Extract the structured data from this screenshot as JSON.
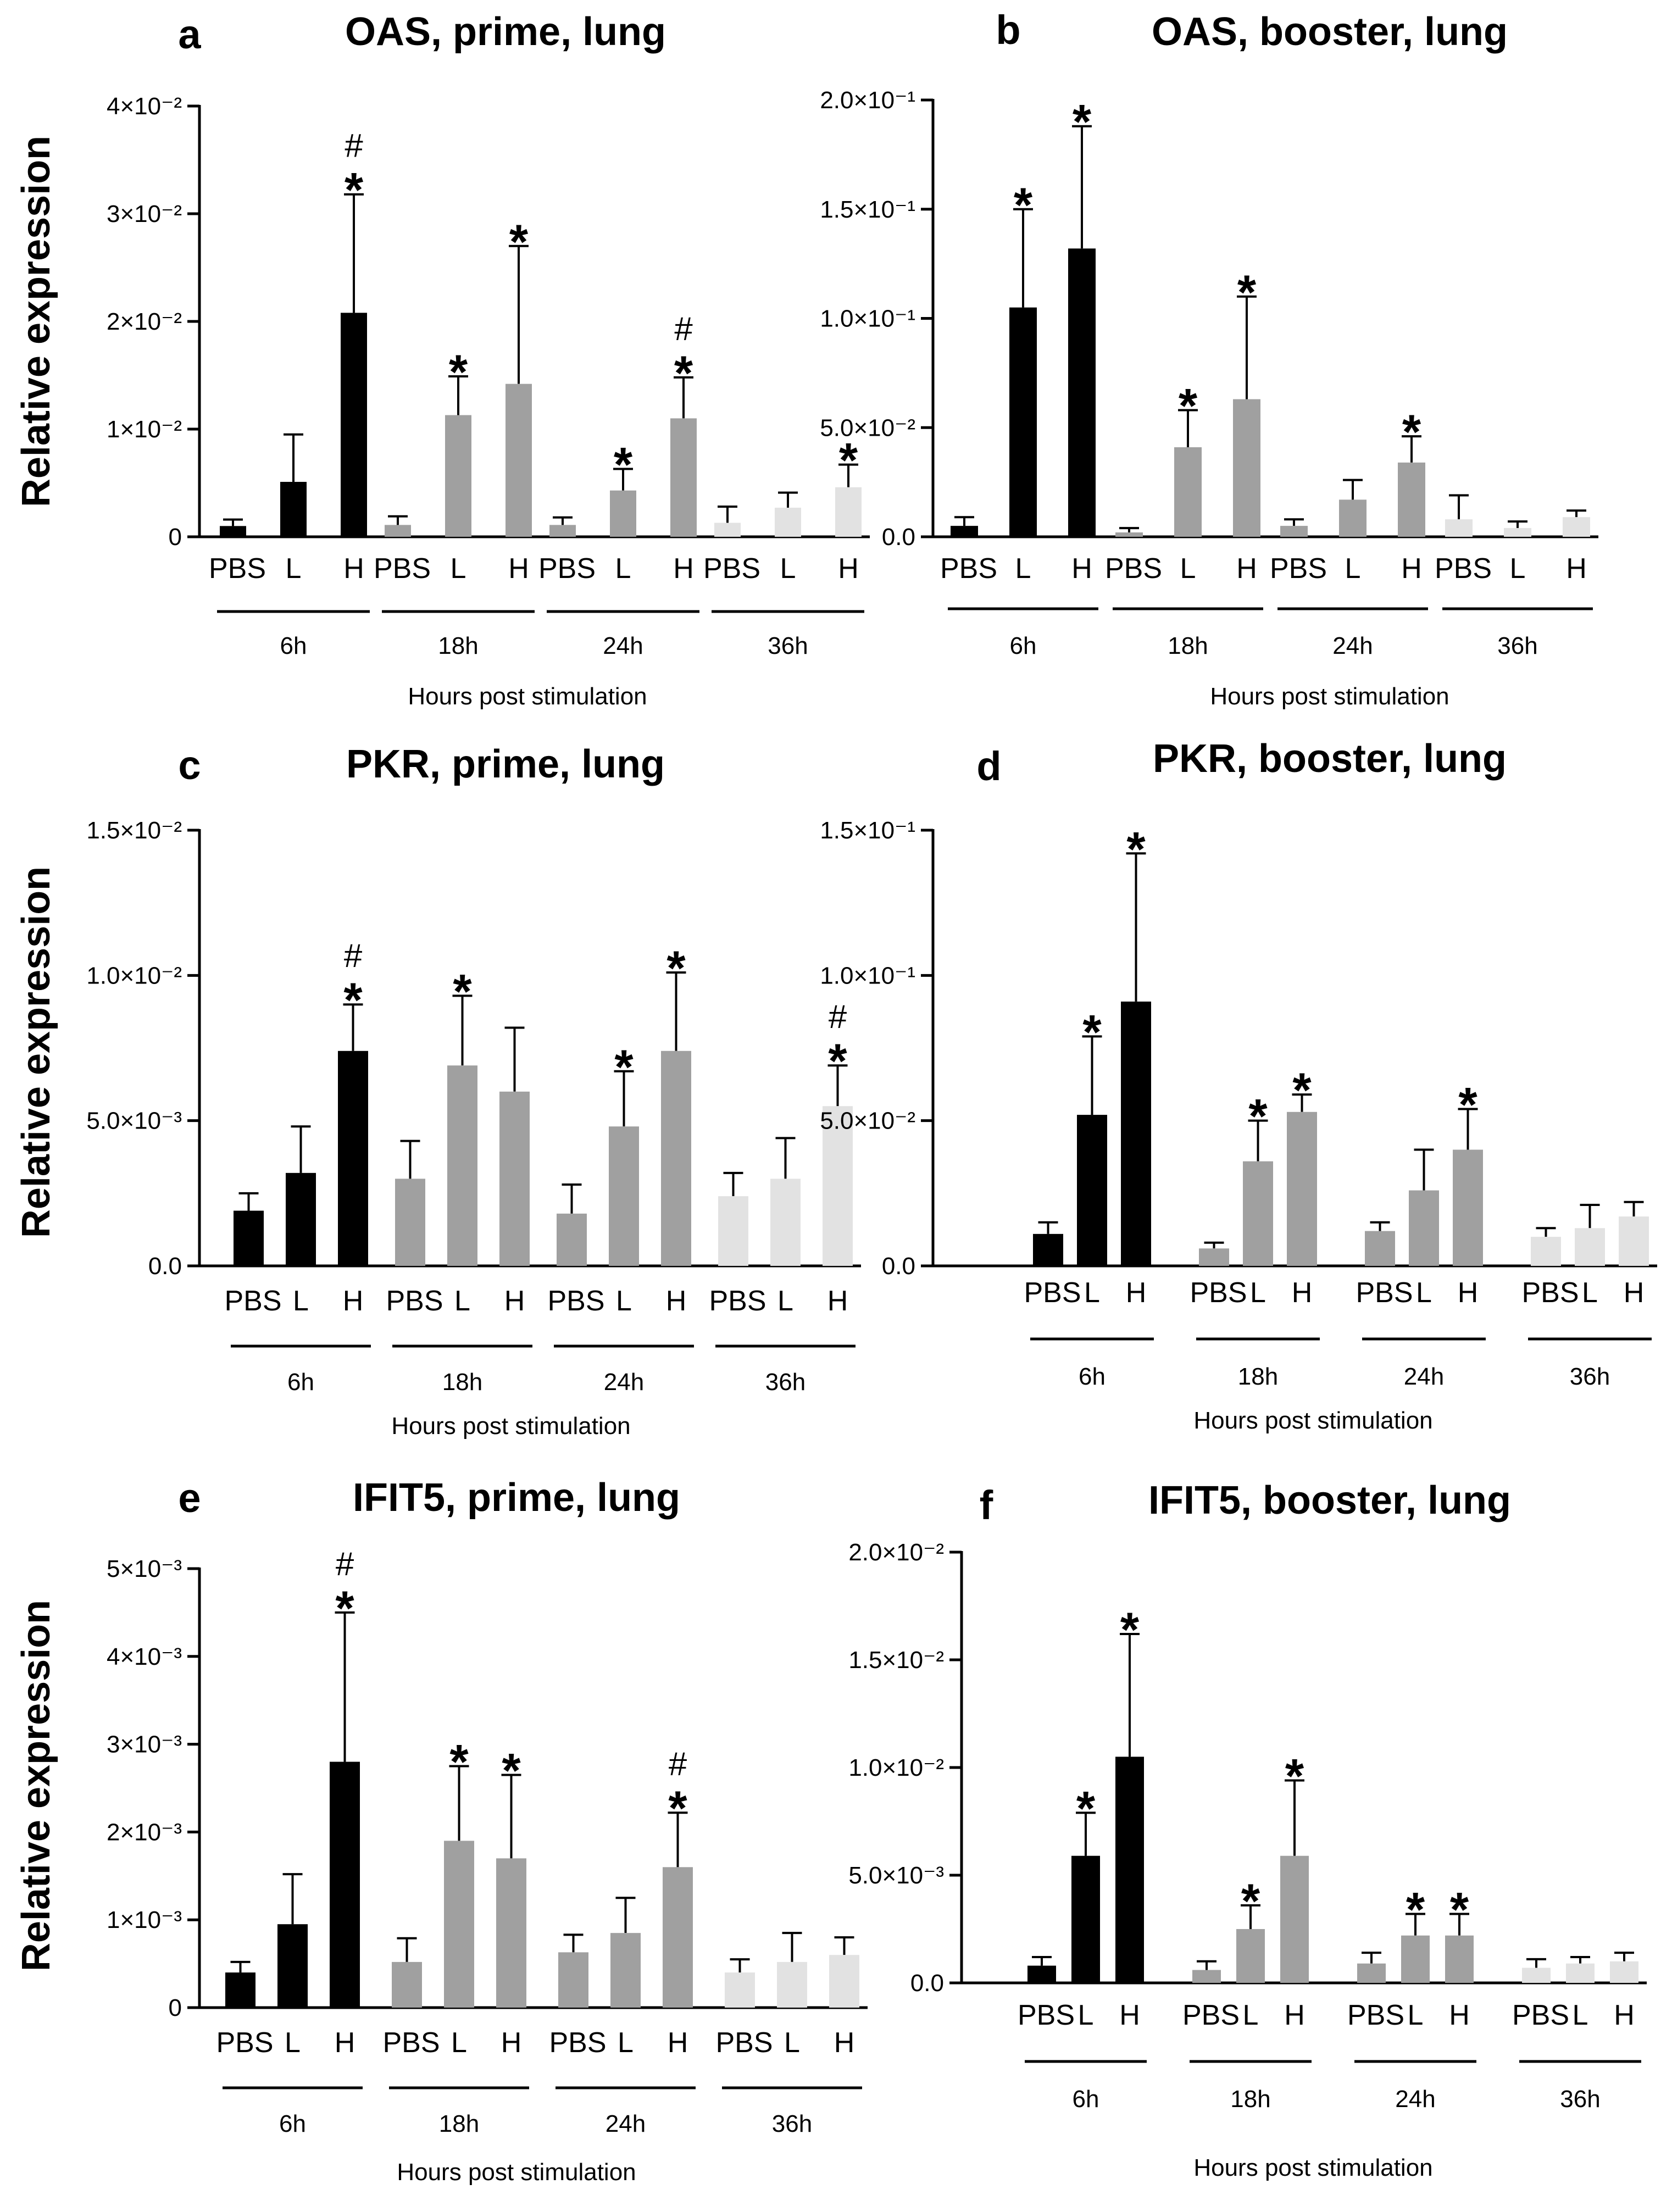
{
  "y_axis_label": "Relative expression",
  "colors": {
    "6h": "#000000",
    "18h": "#a0a0a0",
    "24h": "#a0a0a0",
    "36h": "#e2e2e2"
  },
  "chart_data": [
    {
      "letter": "a",
      "title": "OAS, prime, lung",
      "type": "bar",
      "xlabel": "Hours post stimulation",
      "groups": [
        "6h",
        "18h",
        "24h",
        "36h"
      ],
      "categories": [
        "PBS",
        "L",
        "H"
      ],
      "ylim": [
        0,
        0.04
      ],
      "ticks": [
        {
          "v": 0,
          "label": "0"
        },
        {
          "v": 0.01,
          "label": "1×10⁻²"
        },
        {
          "v": 0.02,
          "label": "2×10⁻²"
        },
        {
          "v": 0.03,
          "label": "3×10⁻²"
        },
        {
          "v": 0.04,
          "label": "4×10⁻²"
        }
      ],
      "values": [
        [
          0.001,
          0.0051,
          0.0208
        ],
        [
          0.0011,
          0.0113,
          0.0142
        ],
        [
          0.0011,
          0.0043,
          0.011
        ],
        [
          0.0013,
          0.0027,
          0.0046
        ]
      ],
      "errors": [
        [
          0.0006,
          0.0044,
          0.011
        ],
        [
          0.0008,
          0.0036,
          0.0128
        ],
        [
          0.0007,
          0.002,
          0.0038
        ],
        [
          0.0015,
          0.0014,
          0.0021
        ]
      ],
      "stars": [
        [
          false,
          false,
          true
        ],
        [
          false,
          true,
          true
        ],
        [
          false,
          true,
          true
        ],
        [
          false,
          false,
          true
        ]
      ],
      "hashes": [
        [
          false,
          false,
          true
        ],
        [
          false,
          false,
          false
        ],
        [
          false,
          false,
          true
        ],
        [
          false,
          false,
          false
        ]
      ]
    },
    {
      "letter": "b",
      "title": "OAS, booster, lung",
      "type": "bar",
      "xlabel": "Hours post stimulation",
      "groups": [
        "6h",
        "18h",
        "24h",
        "36h"
      ],
      "categories": [
        "PBS",
        "L",
        "H"
      ],
      "ylim": [
        0,
        0.2
      ],
      "ticks": [
        {
          "v": 0,
          "label": "0.0"
        },
        {
          "v": 0.05,
          "label": "5.0×10⁻²"
        },
        {
          "v": 0.1,
          "label": "1.0×10⁻¹"
        },
        {
          "v": 0.15,
          "label": "1.5×10⁻¹"
        },
        {
          "v": 0.2,
          "label": "2.0×10⁻¹"
        }
      ],
      "values": [
        [
          0.005,
          0.105,
          0.132
        ],
        [
          0.002,
          0.041,
          0.063
        ],
        [
          0.005,
          0.017,
          0.034
        ],
        [
          0.008,
          0.004,
          0.009
        ]
      ],
      "errors": [
        [
          0.004,
          0.045,
          0.056
        ],
        [
          0.002,
          0.017,
          0.047
        ],
        [
          0.003,
          0.009,
          0.012
        ],
        [
          0.011,
          0.003,
          0.003
        ]
      ],
      "stars": [
        [
          false,
          true,
          true
        ],
        [
          false,
          true,
          true
        ],
        [
          false,
          false,
          true
        ],
        [
          false,
          false,
          false
        ]
      ],
      "hashes": [
        [
          false,
          false,
          false
        ],
        [
          false,
          false,
          false
        ],
        [
          false,
          false,
          false
        ],
        [
          false,
          false,
          false
        ]
      ]
    },
    {
      "letter": "c",
      "title": "PKR, prime, lung",
      "type": "bar",
      "xlabel": "Hours post stimulation",
      "groups": [
        "6h",
        "18h",
        "24h",
        "36h"
      ],
      "categories": [
        "PBS",
        "L",
        "H"
      ],
      "ylim": [
        0,
        0.015
      ],
      "ticks": [
        {
          "v": 0,
          "label": "0.0"
        },
        {
          "v": 0.005,
          "label": "5.0×10⁻³"
        },
        {
          "v": 0.01,
          "label": "1.0×10⁻²"
        },
        {
          "v": 0.015,
          "label": "1.5×10⁻²"
        }
      ],
      "values": [
        [
          0.0019,
          0.0032,
          0.0074
        ],
        [
          0.003,
          0.0069,
          0.006
        ],
        [
          0.0018,
          0.0048,
          0.0074
        ],
        [
          0.0024,
          0.003,
          0.0055
        ]
      ],
      "errors": [
        [
          0.0006,
          0.0016,
          0.0016
        ],
        [
          0.0013,
          0.0024,
          0.0022
        ],
        [
          0.001,
          0.0019,
          0.0027
        ],
        [
          0.0008,
          0.0014,
          0.0014
        ]
      ],
      "stars": [
        [
          false,
          false,
          true
        ],
        [
          false,
          true,
          false
        ],
        [
          false,
          true,
          true
        ],
        [
          false,
          false,
          true
        ]
      ],
      "hashes": [
        [
          false,
          false,
          true
        ],
        [
          false,
          false,
          false
        ],
        [
          false,
          false,
          false
        ],
        [
          false,
          false,
          true
        ]
      ]
    },
    {
      "letter": "d",
      "title": "PKR, booster, lung",
      "type": "bar",
      "xlabel": "Hours post stimulation",
      "groups": [
        "6h",
        "18h",
        "24h",
        "36h"
      ],
      "categories": [
        "PBS",
        "L",
        "H"
      ],
      "ylim": [
        0,
        0.15
      ],
      "ticks": [
        {
          "v": 0,
          "label": "0.0"
        },
        {
          "v": 0.05,
          "label": "5.0×10⁻²"
        },
        {
          "v": 0.1,
          "label": "1.0×10⁻¹"
        },
        {
          "v": 0.15,
          "label": "1.5×10⁻¹"
        }
      ],
      "values": [
        [
          0.011,
          0.052,
          0.091
        ],
        [
          0.006,
          0.036,
          0.053
        ],
        [
          0.012,
          0.026,
          0.04
        ],
        [
          0.01,
          0.013,
          0.017
        ]
      ],
      "errors": [
        [
          0.004,
          0.027,
          0.051
        ],
        [
          0.002,
          0.014,
          0.006
        ],
        [
          0.003,
          0.014,
          0.014
        ],
        [
          0.003,
          0.008,
          0.005
        ]
      ],
      "stars": [
        [
          false,
          true,
          true
        ],
        [
          false,
          true,
          true
        ],
        [
          false,
          false,
          true
        ],
        [
          false,
          false,
          false
        ]
      ],
      "hashes": [
        [
          false,
          false,
          false
        ],
        [
          false,
          false,
          false
        ],
        [
          false,
          false,
          false
        ],
        [
          false,
          false,
          false
        ]
      ]
    },
    {
      "letter": "e",
      "title": "IFIT5, prime, lung",
      "type": "bar",
      "xlabel": "Hours post stimulation",
      "groups": [
        "6h",
        "18h",
        "24h",
        "36h"
      ],
      "categories": [
        "PBS",
        "L",
        "H"
      ],
      "ylim": [
        0,
        0.005
      ],
      "ticks": [
        {
          "v": 0,
          "label": "0"
        },
        {
          "v": 0.001,
          "label": "1×10⁻³"
        },
        {
          "v": 0.002,
          "label": "2×10⁻³"
        },
        {
          "v": 0.003,
          "label": "3×10⁻³"
        },
        {
          "v": 0.004,
          "label": "4×10⁻³"
        },
        {
          "v": 0.005,
          "label": "5×10⁻³"
        }
      ],
      "values": [
        [
          0.0004,
          0.00095,
          0.0028
        ],
        [
          0.00052,
          0.0019,
          0.0017
        ],
        [
          0.00063,
          0.00085,
          0.0016
        ],
        [
          0.0004,
          0.00052,
          0.0006
        ]
      ],
      "errors": [
        [
          0.00012,
          0.00057,
          0.0017
        ],
        [
          0.00027,
          0.00085,
          0.00095
        ],
        [
          0.0002,
          0.0004,
          0.00062
        ],
        [
          0.00015,
          0.00033,
          0.0002
        ]
      ],
      "stars": [
        [
          false,
          false,
          true
        ],
        [
          false,
          true,
          true
        ],
        [
          false,
          false,
          true
        ],
        [
          false,
          false,
          false
        ]
      ],
      "hashes": [
        [
          false,
          false,
          true
        ],
        [
          false,
          false,
          false
        ],
        [
          false,
          false,
          true
        ],
        [
          false,
          false,
          false
        ]
      ]
    },
    {
      "letter": "f",
      "title": "IFIT5, booster, lung",
      "type": "bar",
      "xlabel": "Hours post stimulation",
      "groups": [
        "6h",
        "18h",
        "24h",
        "36h"
      ],
      "categories": [
        "PBS",
        "L",
        "H"
      ],
      "ylim": [
        0,
        0.02
      ],
      "ticks": [
        {
          "v": 0,
          "label": "0.0"
        },
        {
          "v": 0.005,
          "label": "5.0×10⁻³"
        },
        {
          "v": 0.01,
          "label": "1.0×10⁻²"
        },
        {
          "v": 0.015,
          "label": "1.5×10⁻²"
        },
        {
          "v": 0.02,
          "label": "2.0×10⁻²"
        }
      ],
      "values": [
        [
          0.0008,
          0.0059,
          0.0105
        ],
        [
          0.0006,
          0.0025,
          0.0059
        ],
        [
          0.0009,
          0.0022,
          0.0022
        ],
        [
          0.0007,
          0.0009,
          0.001
        ]
      ],
      "errors": [
        [
          0.0004,
          0.002,
          0.0057
        ],
        [
          0.0004,
          0.0011,
          0.0035
        ],
        [
          0.0005,
          0.001,
          0.001
        ],
        [
          0.0004,
          0.0003,
          0.0004
        ]
      ],
      "stars": [
        [
          false,
          true,
          true
        ],
        [
          false,
          true,
          true
        ],
        [
          false,
          true,
          true
        ],
        [
          false,
          false,
          false
        ]
      ],
      "hashes": [
        [
          false,
          false,
          false
        ],
        [
          false,
          false,
          false
        ],
        [
          false,
          false,
          false
        ],
        [
          false,
          false,
          false
        ]
      ]
    }
  ]
}
